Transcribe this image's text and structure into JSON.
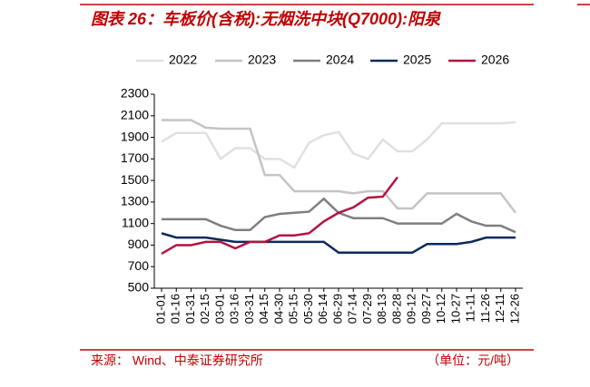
{
  "chart_data": {
    "type": "line",
    "title": "图表 26：车板价(含税):无烟洗中块(Q7000):阳泉",
    "source": "来源：  Wind、中泰证券研究所",
    "unit": "（单位：元/吨）",
    "categories": [
      "01-01",
      "01-16",
      "01-31",
      "02-15",
      "03-01",
      "03-16",
      "03-31",
      "04-15",
      "04-30",
      "05-15",
      "05-30",
      "06-14",
      "06-29",
      "07-14",
      "07-29",
      "08-13",
      "08-28",
      "09-12",
      "09-27",
      "10-12",
      "10-27",
      "11-11",
      "11-26",
      "12-11",
      "12-26"
    ],
    "series": [
      {
        "name": "2022",
        "color": "#e0e0e0",
        "values": [
          1860,
          1940,
          1940,
          1940,
          1700,
          1800,
          1800,
          1700,
          1700,
          1620,
          1850,
          1920,
          1950,
          1750,
          1700,
          1880,
          1770,
          1770,
          1880,
          2030,
          2030,
          2030,
          2030,
          2030,
          2040
        ]
      },
      {
        "name": "2023",
        "color": "#c4c4c4",
        "values": [
          2060,
          2060,
          2060,
          1990,
          1980,
          1980,
          1980,
          1550,
          1550,
          1400,
          1400,
          1400,
          1400,
          1380,
          1400,
          1400,
          1240,
          1240,
          1380,
          1380,
          1380,
          1380,
          1380,
          1380,
          1200
        ]
      },
      {
        "name": "2024",
        "color": "#7f7f7f",
        "values": [
          1140,
          1140,
          1140,
          1140,
          1080,
          1040,
          1040,
          1160,
          1190,
          1200,
          1210,
          1330,
          1200,
          1150,
          1150,
          1150,
          1100,
          1100,
          1100,
          1100,
          1190,
          1120,
          1080,
          1080,
          1020
        ]
      },
      {
        "name": "2025",
        "color": "#0b2a5c",
        "values": [
          1010,
          970,
          970,
          970,
          950,
          930,
          930,
          930,
          930,
          930,
          930,
          930,
          830,
          830,
          830,
          830,
          830,
          830,
          910,
          910,
          910,
          930,
          970,
          970,
          970
        ]
      },
      {
        "name": "2026",
        "color": "#b5123f",
        "values": [
          820,
          900,
          900,
          930,
          930,
          870,
          930,
          930,
          990,
          990,
          1010,
          1120,
          1200,
          1250,
          1340,
          1350,
          1530,
          null,
          null,
          null,
          null,
          null,
          null,
          null,
          null
        ]
      }
    ],
    "ylim": [
      500,
      2300
    ],
    "yticks": [
      500,
      700,
      900,
      1100,
      1300,
      1500,
      1700,
      1900,
      2100,
      2300
    ]
  }
}
